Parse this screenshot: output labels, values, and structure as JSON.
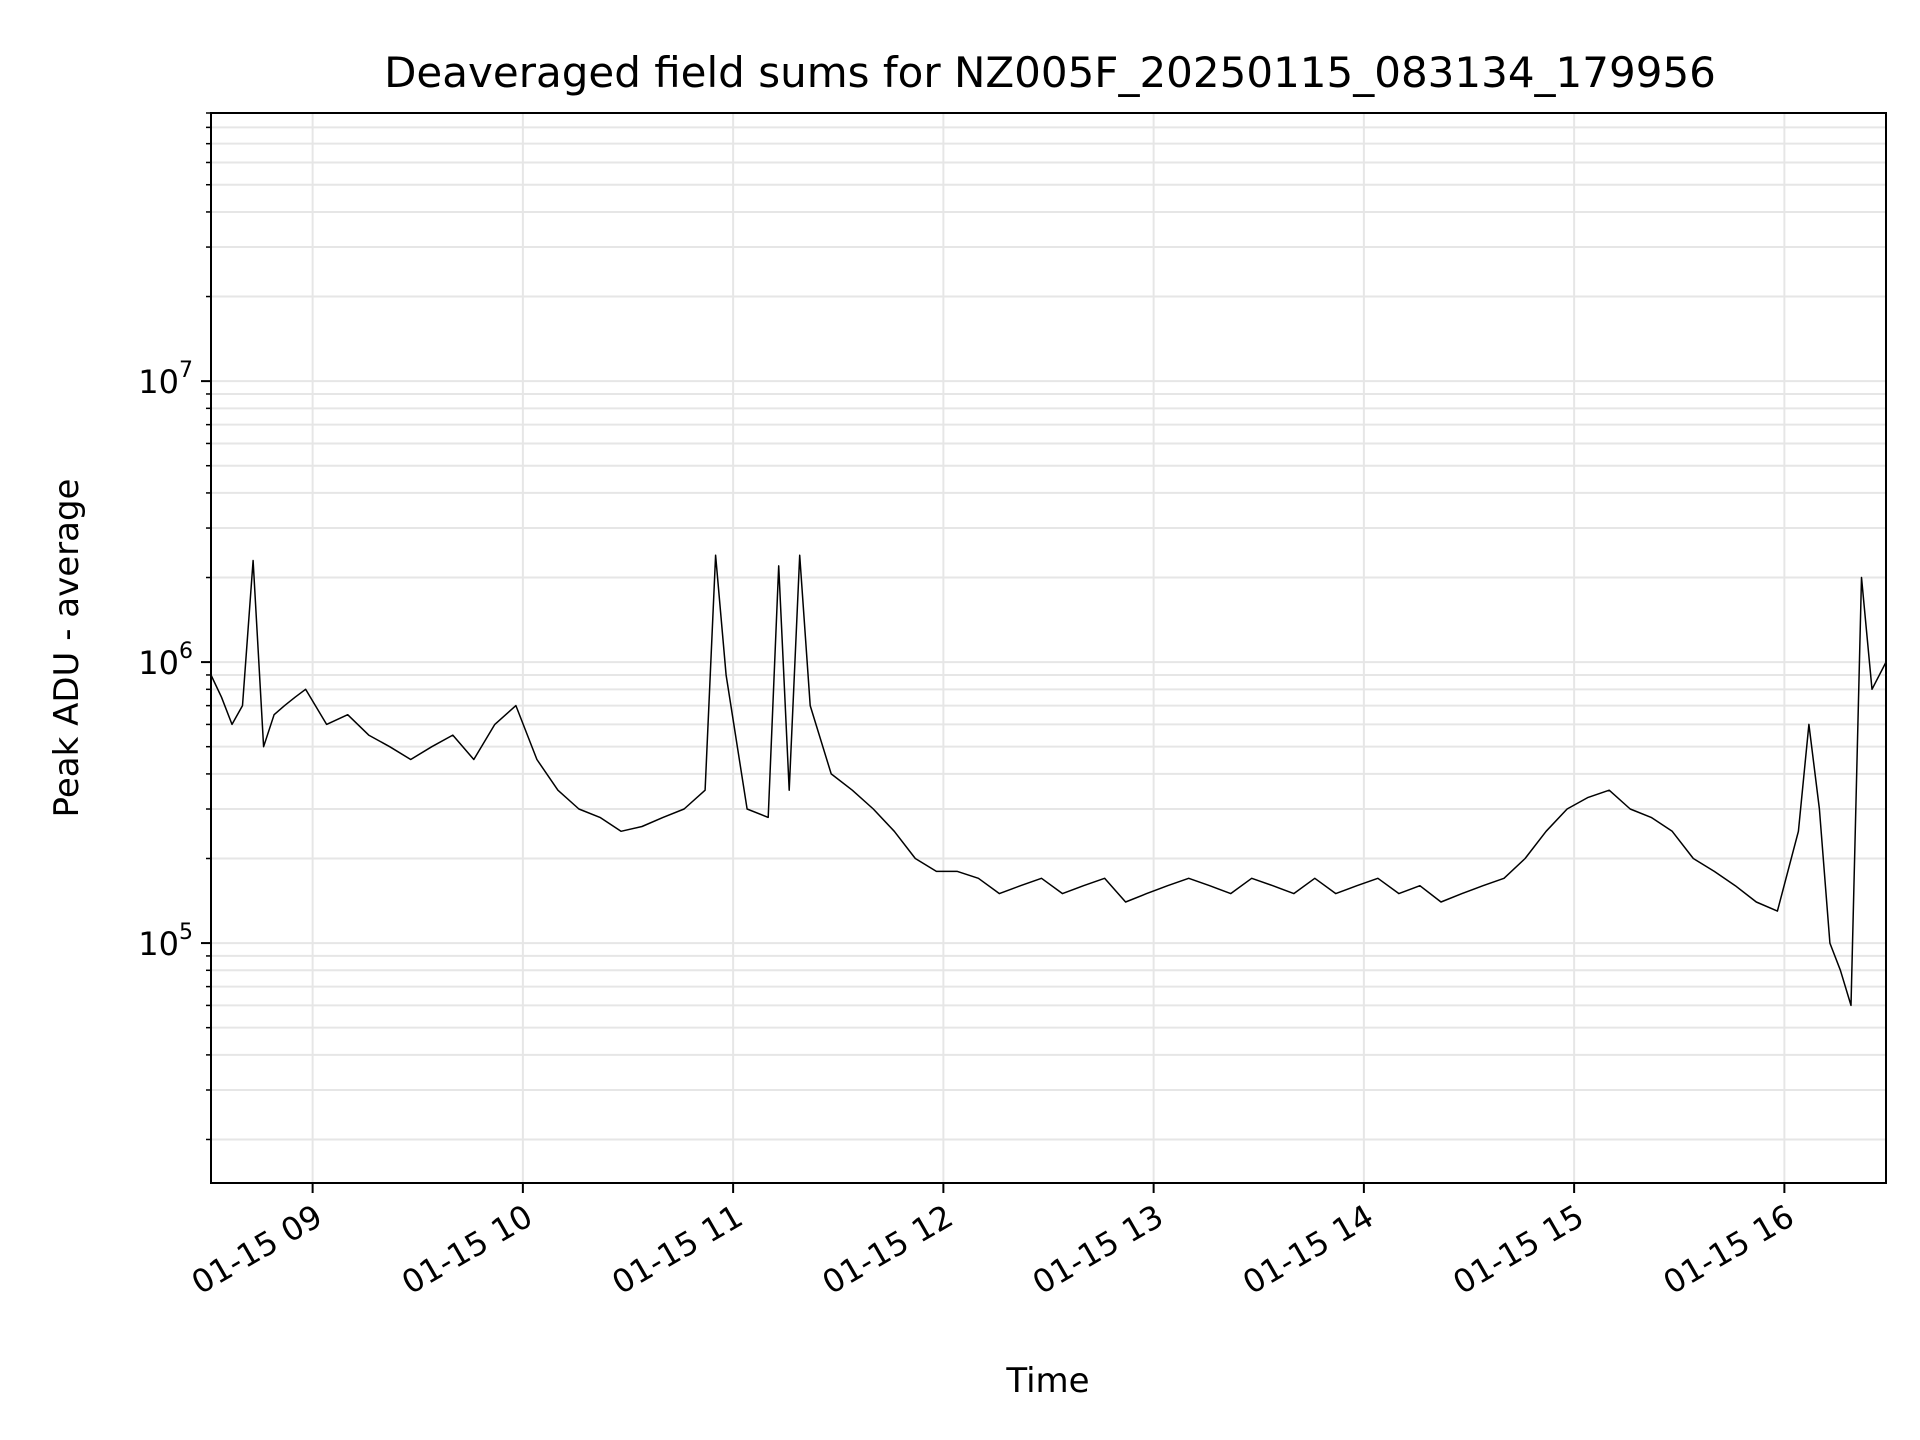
{
  "chart_data": {
    "type": "line",
    "title": "Deaveraged field sums for NZ005F_20250115_083134_179956",
    "xlabel": "Time",
    "ylabel": "Peak ADU - average",
    "yscale": "log",
    "ylim": [
      14000,
      90000000
    ],
    "xlim": [
      "2025-01-15T08:31",
      "2025-01-15T16:29"
    ],
    "grid": true,
    "line_color": "#000000",
    "grid_color": "#e6e6e6",
    "x_ticks": [
      {
        "value": "2025-01-15T09:00",
        "label": "01-15 09"
      },
      {
        "value": "2025-01-15T10:00",
        "label": "01-15 10"
      },
      {
        "value": "2025-01-15T11:00",
        "label": "01-15 11"
      },
      {
        "value": "2025-01-15T12:00",
        "label": "01-15 12"
      },
      {
        "value": "2025-01-15T13:00",
        "label": "01-15 13"
      },
      {
        "value": "2025-01-15T14:00",
        "label": "01-15 14"
      },
      {
        "value": "2025-01-15T15:00",
        "label": "01-15 15"
      },
      {
        "value": "2025-01-15T16:00",
        "label": "01-15 16"
      }
    ],
    "y_ticks": [
      {
        "value": 100000,
        "base": "10",
        "exp": "5"
      },
      {
        "value": 1000000,
        "base": "10",
        "exp": "6"
      },
      {
        "value": 10000000,
        "base": "10",
        "exp": "7"
      }
    ],
    "series": [
      {
        "x": [
          "2025-01-15T08:31",
          "2025-01-15T08:34",
          "2025-01-15T08:37",
          "2025-01-15T08:40",
          "2025-01-15T08:43",
          "2025-01-15T08:46",
          "2025-01-15T08:49",
          "2025-01-15T08:52",
          "2025-01-15T08:55",
          "2025-01-15T08:58",
          "2025-01-15T09:04",
          "2025-01-15T09:10",
          "2025-01-15T09:16",
          "2025-01-15T09:22",
          "2025-01-15T09:28",
          "2025-01-15T09:34",
          "2025-01-15T09:40",
          "2025-01-15T09:46",
          "2025-01-15T09:52",
          "2025-01-15T09:58",
          "2025-01-15T10:04",
          "2025-01-15T10:10",
          "2025-01-15T10:16",
          "2025-01-15T10:22",
          "2025-01-15T10:28",
          "2025-01-15T10:34",
          "2025-01-15T10:40",
          "2025-01-15T10:46",
          "2025-01-15T10:52",
          "2025-01-15T10:55",
          "2025-01-15T10:58",
          "2025-01-15T11:04",
          "2025-01-15T11:10",
          "2025-01-15T11:13",
          "2025-01-15T11:16",
          "2025-01-15T11:19",
          "2025-01-15T11:22",
          "2025-01-15T11:28",
          "2025-01-15T11:34",
          "2025-01-15T11:40",
          "2025-01-15T11:46",
          "2025-01-15T11:52",
          "2025-01-15T11:58",
          "2025-01-15T12:04",
          "2025-01-15T12:10",
          "2025-01-15T12:16",
          "2025-01-15T12:22",
          "2025-01-15T12:28",
          "2025-01-15T12:34",
          "2025-01-15T12:40",
          "2025-01-15T12:46",
          "2025-01-15T12:52",
          "2025-01-15T12:58",
          "2025-01-15T13:04",
          "2025-01-15T13:10",
          "2025-01-15T13:16",
          "2025-01-15T13:22",
          "2025-01-15T13:28",
          "2025-01-15T13:34",
          "2025-01-15T13:40",
          "2025-01-15T13:46",
          "2025-01-15T13:52",
          "2025-01-15T13:58",
          "2025-01-15T14:04",
          "2025-01-15T14:10",
          "2025-01-15T14:16",
          "2025-01-15T14:22",
          "2025-01-15T14:28",
          "2025-01-15T14:34",
          "2025-01-15T14:40",
          "2025-01-15T14:46",
          "2025-01-15T14:52",
          "2025-01-15T14:58",
          "2025-01-15T15:04",
          "2025-01-15T15:10",
          "2025-01-15T15:16",
          "2025-01-15T15:22",
          "2025-01-15T15:28",
          "2025-01-15T15:34",
          "2025-01-15T15:40",
          "2025-01-15T15:46",
          "2025-01-15T15:52",
          "2025-01-15T15:58",
          "2025-01-15T16:04",
          "2025-01-15T16:07",
          "2025-01-15T16:10",
          "2025-01-15T16:13",
          "2025-01-15T16:16",
          "2025-01-15T16:19",
          "2025-01-15T16:22",
          "2025-01-15T16:25",
          "2025-01-15T16:29"
        ],
        "y": [
          900000,
          750000,
          600000,
          700000,
          2300000,
          500000,
          650000,
          700000,
          750000,
          800000,
          600000,
          650000,
          550000,
          500000,
          450000,
          500000,
          550000,
          450000,
          600000,
          700000,
          450000,
          350000,
          300000,
          280000,
          250000,
          260000,
          280000,
          300000,
          350000,
          2400000,
          900000,
          300000,
          280000,
          2200000,
          350000,
          2400000,
          700000,
          400000,
          350000,
          300000,
          250000,
          200000,
          180000,
          180000,
          170000,
          150000,
          160000,
          170000,
          150000,
          160000,
          170000,
          140000,
          150000,
          160000,
          170000,
          160000,
          150000,
          170000,
          160000,
          150000,
          170000,
          150000,
          160000,
          170000,
          150000,
          160000,
          140000,
          150000,
          160000,
          170000,
          200000,
          250000,
          300000,
          330000,
          350000,
          300000,
          280000,
          250000,
          200000,
          180000,
          160000,
          140000,
          130000,
          250000,
          600000,
          300000,
          100000,
          80000,
          60000,
          2000000,
          800000,
          1000000
        ]
      }
    ]
  }
}
